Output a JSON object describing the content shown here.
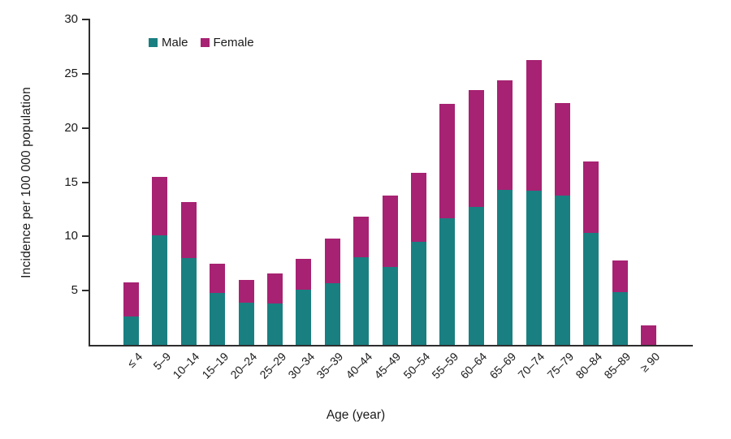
{
  "chart_data": {
    "type": "bar",
    "stacked": true,
    "xlabel": "Age (year)",
    "ylabel": "Incidence per 100 000 population",
    "ylim": [
      0,
      30
    ],
    "yticks": [
      5,
      10,
      15,
      20,
      25,
      30
    ],
    "grid": false,
    "legend_position": "top-left-inside",
    "categories": [
      "≤ 4",
      "5–9",
      "10–14",
      "15–19",
      "20–24",
      "25–29",
      "30–34",
      "35–39",
      "40–44",
      "45–49",
      "50–54",
      "55–59",
      "60–64",
      "65–69",
      "70–74",
      "75–79",
      "80–84",
      "85–89",
      "≥ 90"
    ],
    "series": [
      {
        "name": "Male",
        "color": "#1A7F81",
        "values": [
          2.6,
          10.1,
          8.0,
          4.8,
          3.9,
          3.8,
          5.1,
          5.7,
          8.1,
          7.2,
          9.5,
          11.7,
          12.7,
          14.3,
          14.2,
          13.8,
          10.3,
          4.9,
          0
        ]
      },
      {
        "name": "Female",
        "color": "#A72272",
        "values": [
          3.2,
          5.4,
          5.2,
          2.7,
          2.1,
          2.8,
          2.8,
          4.1,
          3.7,
          6.6,
          6.4,
          10.5,
          10.8,
          10.1,
          12.1,
          8.5,
          6.6,
          2.9,
          1.8
        ]
      }
    ],
    "axis_color": "#2e2e2e",
    "text_color": "#1a1a1a"
  }
}
